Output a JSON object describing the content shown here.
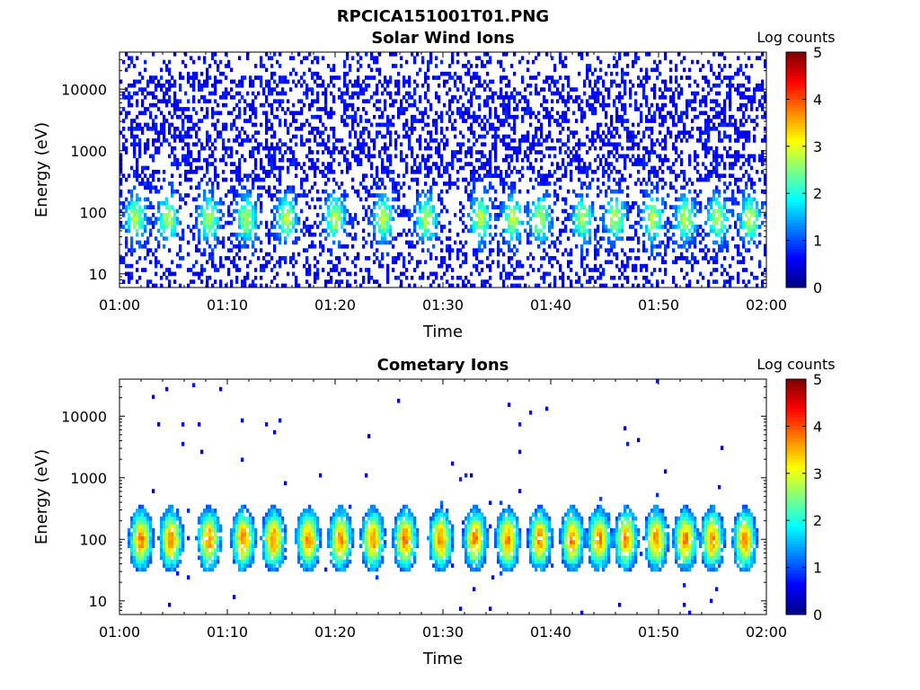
{
  "figure": {
    "title": "RPCICA151001T01.PNG"
  },
  "chart_data": [
    {
      "type": "heatmap",
      "title": "Solar Wind Ions",
      "xlabel": "Time",
      "ylabel": "Energy (eV)",
      "x_range": [
        "01:00",
        "02:00"
      ],
      "x_ticks": [
        "01:00",
        "01:10",
        "01:20",
        "01:30",
        "01:40",
        "01:50",
        "02:00"
      ],
      "y_scale": "log",
      "y_range": [
        6,
        40000
      ],
      "y_ticks": [
        "10",
        "100",
        "1000",
        "10000"
      ],
      "y_tick_values": [
        10,
        100,
        1000,
        10000
      ],
      "colorbar": {
        "title": "Log counts",
        "range": [
          0,
          5
        ],
        "ticks": [
          "0",
          "1",
          "2",
          "3",
          "4",
          "5"
        ],
        "colormap": "jet"
      },
      "features": {
        "burst_center_minutes": [
          1.5,
          4.5,
          8.3,
          11.8,
          15.5,
          20,
          24.5,
          28.5,
          33.5,
          36.5,
          39,
          43,
          46,
          49.5,
          52.5,
          55.5,
          58.5
        ],
        "burst_center_energy_eV": 80,
        "burst_peak_log_counts": 2.2,
        "background_log_counts": 0.4
      }
    },
    {
      "type": "heatmap",
      "title": "Cometary Ions",
      "xlabel": "Time",
      "ylabel": "Energy (eV)",
      "x_range": [
        "01:00",
        "02:00"
      ],
      "x_ticks": [
        "01:00",
        "01:10",
        "01:20",
        "01:30",
        "01:40",
        "01:50",
        "02:00"
      ],
      "y_scale": "log",
      "y_range": [
        6,
        40000
      ],
      "y_ticks": [
        "10",
        "100",
        "1000",
        "10000"
      ],
      "y_tick_values": [
        10,
        100,
        1000,
        10000
      ],
      "colorbar": {
        "title": "Log counts",
        "range": [
          0,
          5
        ],
        "ticks": [
          "0",
          "1",
          "2",
          "3",
          "4",
          "5"
        ],
        "colormap": "jet"
      },
      "features": {
        "burst_center_minutes": [
          2,
          4.8,
          8.3,
          11.5,
          14.3,
          17.5,
          20.5,
          23.5,
          26.5,
          29.8,
          33,
          36,
          39,
          42,
          44.5,
          47,
          49.8,
          52.5,
          55,
          58
        ],
        "burst_center_energy_eV": 100,
        "burst_peak_log_counts": 3.2,
        "background_log_counts": 0.3
      }
    }
  ]
}
